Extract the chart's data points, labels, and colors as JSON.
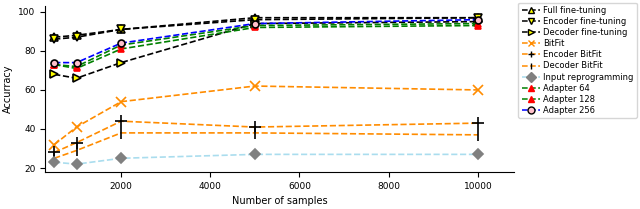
{
  "x": [
    500,
    1000,
    2000,
    5000,
    10000
  ],
  "series": {
    "Full fine-tuning": {
      "values": [
        87,
        88,
        91,
        97,
        97
      ],
      "color": "black",
      "marker": "^",
      "mfc": "yellow",
      "mec": "black",
      "ms": 6
    },
    "Encoder fine-tuning": {
      "values": [
        86,
        87,
        91,
        96,
        97
      ],
      "color": "black",
      "marker": "v",
      "mfc": "yellow",
      "mec": "black",
      "ms": 6
    },
    "Decoder fine-tuning": {
      "values": [
        68,
        66,
        74,
        94,
        95
      ],
      "color": "black",
      "marker": ">",
      "mfc": "yellow",
      "mec": "black",
      "ms": 6
    },
    "BitFit": {
      "values": [
        32,
        41,
        54,
        62,
        60
      ],
      "color": "darkorange",
      "marker": "x",
      "mfc": "black",
      "mec": "darkorange",
      "ms": 7
    },
    "Encoder BitFit": {
      "values": [
        28,
        33,
        44,
        41,
        43
      ],
      "color": "darkorange",
      "marker": "+",
      "mfc": "black",
      "mec": "black",
      "ms": 8
    },
    "Decoder BitFit": {
      "values": [
        25,
        29,
        38,
        38,
        37
      ],
      "color": "darkorange",
      "marker": "|",
      "mfc": "black",
      "mec": "black",
      "ms": 8
    },
    "Input reprogramming": {
      "values": [
        23,
        22,
        25,
        27,
        27
      ],
      "color": "#aaddee",
      "marker": "D",
      "mfc": "gray",
      "mec": "gray",
      "ms": 5
    },
    "Adapter 64": {
      "values": [
        73,
        71,
        81,
        92,
        93
      ],
      "color": "green",
      "marker": "^",
      "mfc": "red",
      "mec": "red",
      "ms": 5
    },
    "Adapter 128": {
      "values": [
        73,
        72,
        83,
        93,
        94
      ],
      "color": "green",
      "marker": "^",
      "mfc": "red",
      "mec": "red",
      "ms": 5
    },
    "Adapter 256": {
      "values": [
        74,
        74,
        84,
        94,
        96
      ],
      "color": "blue",
      "marker": "o",
      "mfc": "pink",
      "mec": "black",
      "ms": 5
    }
  },
  "xlabel": "Number of samples",
  "ylabel": "Accurracy",
  "ylim": [
    18,
    103
  ],
  "xlim": [
    300,
    10800
  ],
  "yticks": [
    20,
    40,
    60,
    80,
    100
  ],
  "xticks": [
    2000,
    4000,
    6000,
    8000,
    10000
  ],
  "figsize": [
    6.4,
    2.09
  ],
  "dpi": 100,
  "background_color": "white",
  "legend_order": [
    "Full fine-tuning",
    "Encoder fine-tuning",
    "Decoder fine-tuning",
    "BitFit",
    "Encoder BitFit",
    "Decoder BitFit",
    "Input reprogramming",
    "Adapter 64",
    "Adapter 128",
    "Adapter 256"
  ]
}
